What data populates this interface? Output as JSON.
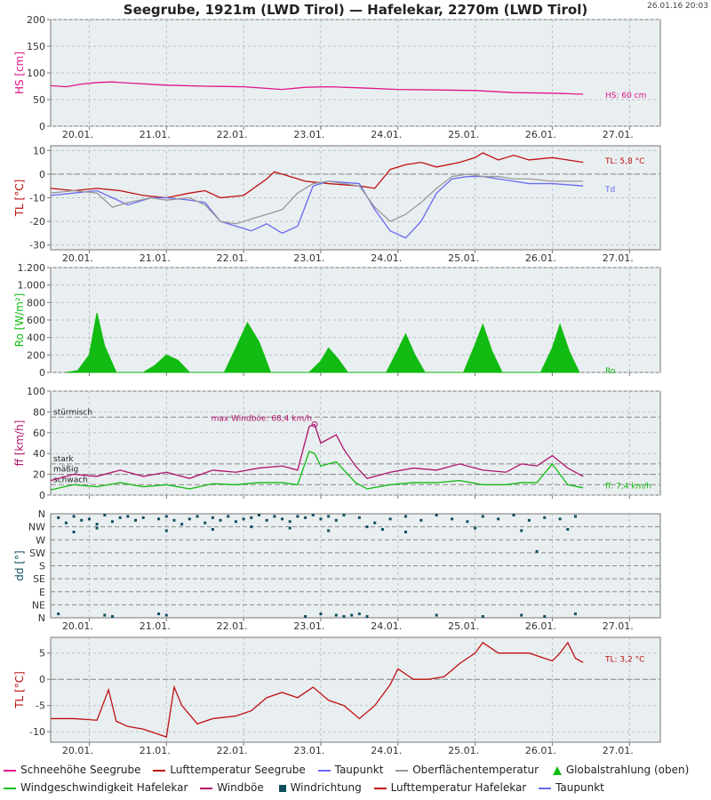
{
  "header": {
    "title": "Seegrube, 1921m (LWD Tirol) — Hafelekar, 2270m (LWD Tirol)",
    "timestamp": "26.01.16 20:03"
  },
  "colors": {
    "snow": "#e0148a",
    "air_temp": "#c01010",
    "dewpoint": "#6a6af0",
    "surface_temp": "#999999",
    "radiation": "#11bb11",
    "wind_speed": "#11bb11",
    "gust": "#b0126a",
    "wind_dir": "#0f4f5f"
  },
  "legend": [
    {
      "label": "Schneehöhe Seegrube",
      "color": "#e0148a",
      "marker": "line"
    },
    {
      "label": "Lufttemperatur Seegrube",
      "color": "#c01010",
      "marker": "line"
    },
    {
      "label": "Taupunkt",
      "color": "#6a6af0",
      "marker": "line"
    },
    {
      "label": "Oberflächentemperatur",
      "color": "#999999",
      "marker": "line"
    },
    {
      "label": "Globalstrahlung (oben)",
      "color": "#11bb11",
      "marker": "triangle"
    },
    {
      "label": "Windgeschwindigkeit Hafelekar",
      "color": "#11bb11",
      "marker": "line"
    },
    {
      "label": "Windböe",
      "color": "#b0126a",
      "marker": "line"
    },
    {
      "label": "Windrichtung",
      "color": "#0f4f5f",
      "marker": "square"
    },
    {
      "label": "Lufttemperatur Hafelekar",
      "color": "#c01010",
      "marker": "line"
    },
    {
      "label": "Taupunkt",
      "color": "#6a6af0",
      "marker": "line"
    }
  ],
  "chart_data": [
    {
      "id": "snow",
      "type": "line",
      "ylabel": "HS [cm]",
      "xlim": [
        0,
        7.9
      ],
      "ylim": [
        0,
        200
      ],
      "yticks": [
        0,
        50,
        100,
        150,
        200
      ],
      "ytick_labels": [
        "0",
        "50",
        "100",
        "150",
        "200"
      ],
      "xtick_labels": [
        "20.01.",
        "21.01.",
        "22.01.",
        "23.01.",
        "24.01.",
        "25.01.",
        "26.01.",
        "27.01."
      ],
      "grid": true,
      "dashed_lines": [],
      "series": [
        {
          "name": "Schneehöhe Seegrube",
          "color": "#e0148a",
          "x": [
            0,
            0.2,
            0.4,
            0.6,
            0.8,
            1.0,
            1.5,
            2.0,
            2.5,
            3.0,
            3.3,
            3.6,
            4.0,
            4.5,
            5.0,
            5.5,
            6.0,
            6.5,
            6.9
          ],
          "y": [
            76,
            74,
            79,
            82,
            83,
            81,
            77,
            75,
            74,
            69,
            73,
            74,
            72,
            69,
            68,
            67,
            63,
            62,
            60
          ]
        }
      ],
      "annotations": [
        {
          "text": "HS: 60 cm",
          "x": 7.2,
          "y": 60,
          "color": "#e0148a"
        }
      ]
    },
    {
      "id": "temp_seegrube",
      "type": "line",
      "ylabel": "TL [°C]",
      "xlim": [
        0,
        7.9
      ],
      "ylim": [
        -32,
        12
      ],
      "yticks": [
        10,
        0,
        -10,
        -20,
        -30
      ],
      "ytick_labels": [
        "10",
        "0",
        "-10",
        "-20",
        "-30"
      ],
      "xtick_labels": [
        "20.01.",
        "21.01.",
        "22.01.",
        "23.01.",
        "24.01.",
        "25.01.",
        "26.01.",
        "27.01."
      ],
      "grid": true,
      "dashed_lines": [
        0
      ],
      "series": [
        {
          "name": "Lufttemperatur Seegrube",
          "color": "#c01010",
          "x": [
            0,
            0.3,
            0.6,
            0.9,
            1.2,
            1.5,
            1.8,
            2.0,
            2.2,
            2.5,
            2.8,
            2.9,
            3.0,
            3.3,
            3.6,
            4.0,
            4.2,
            4.4,
            4.6,
            4.8,
            5.0,
            5.3,
            5.5,
            5.6,
            5.8,
            6.0,
            6.2,
            6.5,
            6.9
          ],
          "y": [
            -6,
            -7,
            -6,
            -7,
            -9,
            -10,
            -8,
            -7,
            -10,
            -9,
            -2,
            1,
            0,
            -3,
            -4,
            -5,
            -6,
            2,
            4,
            5,
            3,
            5,
            7,
            9,
            6,
            8,
            6,
            7,
            5
          ]
        },
        {
          "name": "Taupunkt",
          "color": "#6a6af0",
          "x": [
            0,
            0.3,
            0.6,
            0.8,
            1.0,
            1.3,
            1.5,
            1.8,
            2.0,
            2.2,
            2.4,
            2.6,
            2.8,
            3.0,
            3.2,
            3.4,
            3.6,
            4.0,
            4.2,
            4.4,
            4.6,
            4.8,
            5.0,
            5.2,
            5.4,
            5.6,
            5.8,
            6.0,
            6.2,
            6.5,
            6.9
          ],
          "y": [
            -9,
            -8,
            -7,
            -10,
            -13,
            -10,
            -10,
            -11,
            -12,
            -20,
            -22,
            -24,
            -21,
            -25,
            -22,
            -5,
            -3,
            -4,
            -15,
            -24,
            -27,
            -20,
            -8,
            -2,
            -1,
            -1,
            -2,
            -3,
            -4,
            -4,
            -5
          ]
        },
        {
          "name": "Oberflächentemperatur",
          "color": "#999999",
          "x": [
            0,
            0.3,
            0.6,
            0.8,
            1.0,
            1.3,
            1.5,
            1.8,
            2.0,
            2.2,
            2.4,
            2.6,
            2.8,
            3.0,
            3.2,
            3.4,
            3.6,
            4.0,
            4.2,
            4.4,
            4.6,
            4.8,
            5.0,
            5.2,
            5.4,
            5.6,
            5.8,
            6.0,
            6.2,
            6.5,
            6.9
          ],
          "y": [
            -8,
            -7,
            -8,
            -14,
            -12,
            -10,
            -11,
            -10,
            -13,
            -20,
            -21,
            -19,
            -17,
            -15,
            -8,
            -4,
            -3,
            -5,
            -14,
            -20,
            -17,
            -12,
            -6,
            -1,
            0,
            -1,
            -1,
            -2,
            -2,
            -3,
            -3
          ]
        }
      ],
      "annotations": [
        {
          "text": "TL: 5,8 °C",
          "x": 7.2,
          "y": 6,
          "color": "#c01010"
        },
        {
          "text": "Td",
          "x": 7.2,
          "y": -6,
          "color": "#6a6af0"
        }
      ]
    },
    {
      "id": "radiation",
      "type": "area",
      "ylabel": "Ro [W/m²]",
      "xlim": [
        0,
        7.9
      ],
      "ylim": [
        0,
        1200
      ],
      "yticks": [
        0,
        200,
        400,
        600,
        800,
        1000,
        1200
      ],
      "ytick_labels": [
        "0",
        "200",
        "400",
        "600",
        "800",
        "1.000",
        "1.200"
      ],
      "xtick_labels": [
        "20.01.",
        "21.01.",
        "22.01.",
        "23.01.",
        "24.01.",
        "25.01.",
        "26.01.",
        "27.01."
      ],
      "grid": true,
      "dashed_lines": [],
      "series": [
        {
          "name": "Globalstrahlung (oben)",
          "color": "#11bb11",
          "x": [
            0.2,
            0.35,
            0.5,
            0.6,
            0.7,
            0.85,
            1.2,
            1.35,
            1.5,
            1.65,
            1.8,
            2.25,
            2.4,
            2.55,
            2.7,
            2.85,
            3.35,
            3.5,
            3.6,
            3.72,
            3.85,
            4.35,
            4.5,
            4.6,
            4.72,
            4.85,
            5.35,
            5.5,
            5.6,
            5.72,
            5.85,
            6.35,
            6.5,
            6.6,
            6.72,
            6.85
          ],
          "y": [
            0,
            20,
            200,
            680,
            300,
            0,
            0,
            80,
            200,
            140,
            0,
            0,
            280,
            570,
            350,
            0,
            0,
            130,
            280,
            160,
            0,
            0,
            260,
            440,
            200,
            0,
            0,
            320,
            550,
            240,
            0,
            0,
            280,
            550,
            240,
            0
          ]
        }
      ],
      "annotations": [
        {
          "text": "Ro",
          "x": 7.2,
          "y": 30,
          "color": "#11bb11"
        }
      ]
    },
    {
      "id": "wind",
      "type": "line",
      "ylabel": "ff [km/h]",
      "xlim": [
        0,
        7.9
      ],
      "ylim": [
        0,
        100
      ],
      "yticks": [
        0,
        20,
        40,
        60,
        80,
        100
      ],
      "ytick_labels": [
        "0",
        "20",
        "40",
        "60",
        "80",
        "100"
      ],
      "xtick_labels": [
        "20.01.",
        "21.01.",
        "22.01.",
        "23.01.",
        "24.01.",
        "25.01.",
        "26.01.",
        "27.01."
      ],
      "grid": true,
      "dashed_lines": [
        75,
        30,
        20,
        10
      ],
      "reference_labels": [
        {
          "text": "stürmisch",
          "y": 75
        },
        {
          "text": "stark",
          "y": 30
        },
        {
          "text": "mäßig",
          "y": 20
        },
        {
          "text": "schwach",
          "y": 10
        }
      ],
      "series": [
        {
          "name": "Windböe",
          "color": "#b0126a",
          "x": [
            0,
            0.3,
            0.6,
            0.9,
            1.2,
            1.5,
            1.8,
            2.1,
            2.4,
            2.7,
            3.0,
            3.2,
            3.35,
            3.42,
            3.5,
            3.7,
            3.8,
            3.95,
            4.1,
            4.4,
            4.7,
            5.0,
            5.3,
            5.6,
            5.9,
            6.1,
            6.3,
            6.5,
            6.7,
            6.9
          ],
          "y": [
            14,
            20,
            18,
            24,
            18,
            22,
            16,
            24,
            22,
            26,
            28,
            24,
            66,
            68,
            50,
            58,
            44,
            28,
            16,
            22,
            26,
            24,
            30,
            24,
            22,
            30,
            28,
            38,
            26,
            18
          ]
        },
        {
          "name": "Windgeschwindigkeit Hafelekar",
          "color": "#11bb11",
          "x": [
            0,
            0.3,
            0.6,
            0.9,
            1.2,
            1.5,
            1.8,
            2.1,
            2.4,
            2.7,
            3.0,
            3.2,
            3.35,
            3.42,
            3.5,
            3.7,
            3.8,
            3.95,
            4.1,
            4.4,
            4.7,
            5.0,
            5.3,
            5.6,
            5.9,
            6.1,
            6.3,
            6.5,
            6.7,
            6.9
          ],
          "y": [
            5,
            10,
            8,
            12,
            8,
            10,
            6,
            11,
            10,
            12,
            12,
            10,
            42,
            40,
            28,
            32,
            24,
            12,
            6,
            10,
            12,
            12,
            14,
            10,
            10,
            12,
            12,
            30,
            10,
            7
          ]
        }
      ],
      "annotations": [
        {
          "text": "max Windböe: 68,4 km/h",
          "x": 3.42,
          "y": 68,
          "color": "#b0126a"
        },
        {
          "text": "ff: 7,4 km/h",
          "x": 7.2,
          "y": 10,
          "color": "#11bb11"
        }
      ]
    },
    {
      "id": "wind_direction",
      "type": "scatter",
      "ylabel": "dd [°]",
      "xlim": [
        0,
        7.9
      ],
      "ylim": [
        0,
        8
      ],
      "ytick_labels": [
        "N",
        "NW",
        "W",
        "SW",
        "S",
        "SE",
        "E",
        "NE",
        "N"
      ],
      "xtick_labels": [
        "20.01.",
        "21.01.",
        "22.01.",
        "23.01.",
        "24.01.",
        "25.01.",
        "26.01.",
        "27.01."
      ],
      "grid": true,
      "dashed_lines": [],
      "series": [
        {
          "name": "Windrichtung",
          "color": "#0f4f5f",
          "x": [
            0.1,
            0.2,
            0.3,
            0.4,
            0.5,
            0.6,
            0.7,
            0.8,
            0.9,
            1.0,
            1.1,
            1.2,
            1.4,
            1.5,
            1.6,
            1.7,
            1.8,
            1.9,
            2.0,
            2.1,
            2.2,
            2.3,
            2.4,
            2.5,
            2.6,
            2.7,
            2.8,
            2.9,
            3.0,
            3.1,
            3.2,
            3.3,
            3.4,
            3.5,
            3.6,
            3.7,
            3.8,
            4.0,
            4.2,
            4.4,
            4.6,
            4.8,
            5.0,
            5.2,
            5.4,
            5.6,
            5.8,
            6.0,
            6.2,
            6.4,
            6.6,
            6.8,
            0.3,
            0.6,
            1.5,
            2.1,
            2.6,
            3.1,
            3.6,
            4.1,
            4.3,
            4.6,
            5.5,
            6.1,
            6.3,
            6.7,
            0.1,
            0.7,
            0.8,
            1.4,
            1.5,
            3.3,
            3.5,
            3.7,
            3.8,
            3.9,
            4.0,
            4.1,
            5.0,
            5.6,
            6.1,
            6.4,
            6.8
          ],
          "y": [
            7.7,
            7.3,
            7.8,
            7.5,
            7.6,
            7.2,
            7.9,
            7.4,
            7.7,
            7.8,
            7.5,
            7.7,
            7.6,
            7.8,
            7.5,
            7.2,
            7.6,
            7.8,
            7.3,
            7.7,
            7.5,
            7.8,
            7.4,
            7.6,
            7.7,
            7.9,
            7.5,
            7.8,
            7.6,
            7.4,
            7.8,
            7.7,
            7.9,
            7.6,
            7.8,
            7.5,
            7.9,
            7.7,
            7.3,
            7.6,
            7.8,
            7.5,
            7.9,
            7.6,
            7.4,
            7.8,
            7.6,
            7.9,
            7.5,
            7.7,
            7.6,
            7.8,
            6.6,
            6.9,
            6.7,
            6.8,
            7.0,
            6.9,
            6.7,
            7.0,
            6.8,
            6.6,
            6.9,
            6.7,
            5.1,
            6.8,
            0.3,
            0.2,
            0.1,
            0.3,
            0.2,
            0.1,
            0.3,
            0.2,
            0.1,
            0.2,
            0.3,
            0.1,
            0.2,
            0.1,
            0.2,
            0.1,
            0.3
          ]
        }
      ],
      "annotations": []
    },
    {
      "id": "temp_hafelekar",
      "type": "line",
      "ylabel": "TL [°C]",
      "xlim": [
        0,
        7.9
      ],
      "ylim": [
        -12,
        8
      ],
      "yticks": [
        5,
        0,
        -5,
        -10
      ],
      "ytick_labels": [
        "5",
        "0",
        "-5",
        "-10"
      ],
      "xtick_labels": [
        "20.01.",
        "21.01.",
        "22.01.",
        "23.01.",
        "24.01.",
        "25.01.",
        "26.01.",
        "27.01."
      ],
      "grid": true,
      "dashed_lines": [
        0
      ],
      "series": [
        {
          "name": "Lufttemperatur Hafelekar",
          "color": "#c01010",
          "x": [
            0,
            0.3,
            0.6,
            0.75,
            0.85,
            1.0,
            1.2,
            1.5,
            1.6,
            1.7,
            1.9,
            2.1,
            2.4,
            2.6,
            2.8,
            3.0,
            3.2,
            3.4,
            3.6,
            3.8,
            4.0,
            4.2,
            4.4,
            4.5,
            4.7,
            4.9,
            5.1,
            5.3,
            5.5,
            5.6,
            5.8,
            6.0,
            6.2,
            6.4,
            6.5,
            6.6,
            6.7,
            6.8,
            6.9
          ],
          "y": [
            -7.5,
            -7.5,
            -7.8,
            -2,
            -8,
            -9,
            -9.5,
            -11,
            -1.5,
            -5,
            -8.5,
            -7.5,
            -7,
            -6,
            -3.5,
            -2.5,
            -3.5,
            -1.5,
            -4,
            -5,
            -7.5,
            -5,
            -1,
            2,
            0,
            0,
            0.5,
            3,
            5,
            7,
            5,
            5,
            5,
            4,
            3.5,
            5,
            7,
            4,
            3.2
          ]
        }
      ],
      "annotations": [
        {
          "text": "TL: 3,2 °C",
          "x": 7.2,
          "y": 4,
          "color": "#c01010"
        }
      ]
    }
  ]
}
